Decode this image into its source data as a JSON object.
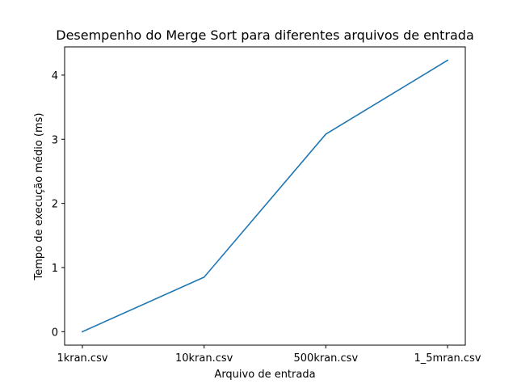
{
  "chart_data": {
    "type": "line",
    "title": "Desempenho do Merge Sort para diferentes arquivos de entrada",
    "xlabel": "Arquivo de entrada",
    "ylabel": "Tempo de execução médio (ms)",
    "categories": [
      "1kran.csv",
      "10kran.csv",
      "500kran.csv",
      "1_5mran.csv"
    ],
    "series": [
      {
        "values": [
          0.0,
          0.85,
          3.08,
          4.23
        ],
        "color": "#1f77b4"
      }
    ],
    "yticks": [
      0,
      1,
      2,
      3,
      4
    ],
    "ylim": [
      -0.21,
      4.44
    ],
    "grid": false,
    "legend": "none"
  }
}
